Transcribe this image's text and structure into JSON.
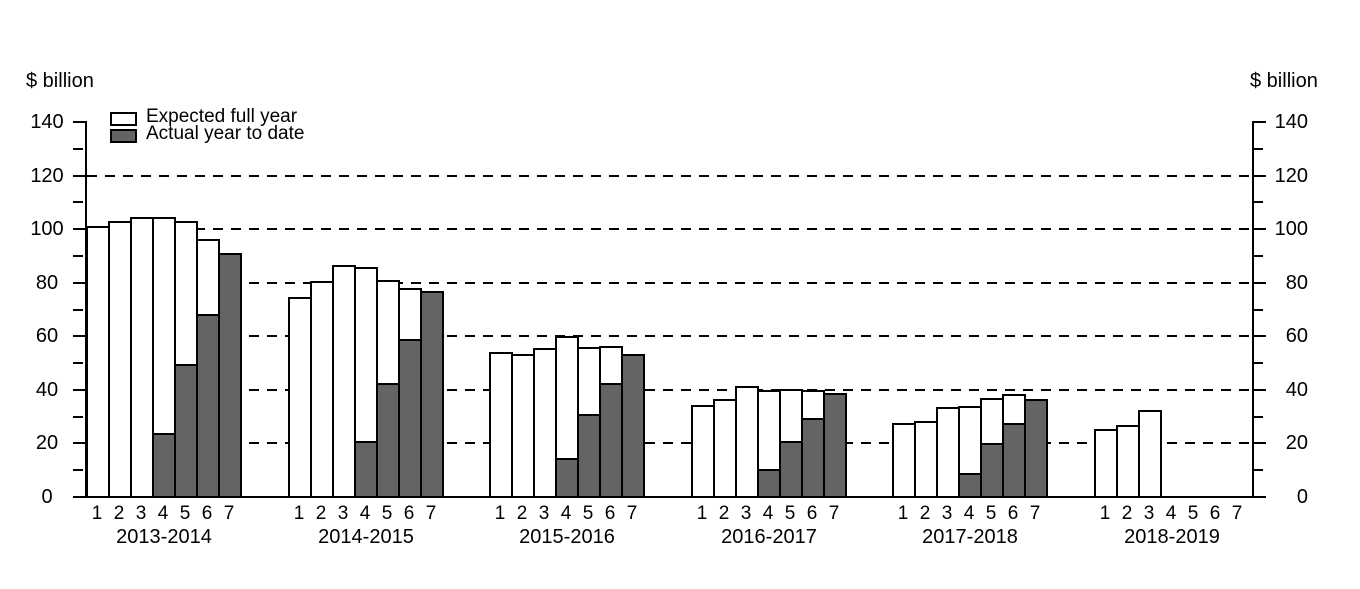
{
  "chart_data": {
    "type": "bar",
    "unit_label": "$ billion",
    "ylim": [
      0,
      140
    ],
    "yticks_major": [
      0,
      20,
      40,
      60,
      80,
      100,
      120,
      140
    ],
    "yticks_minor": [
      10,
      30,
      50,
      70,
      90,
      110,
      130
    ],
    "gridlines": [
      20,
      40,
      60,
      80,
      100,
      120
    ],
    "grid_style": "dashed",
    "colors": {
      "expected_fill": "#ffffff",
      "actual_fill": "#646464",
      "outline": "#000000"
    },
    "legend": [
      {
        "key": "expected",
        "label": "Expected full year"
      },
      {
        "key": "actual",
        "label": "Actual year to date"
      }
    ],
    "obs_labels": [
      "1",
      "2",
      "3",
      "4",
      "5",
      "6",
      "7"
    ],
    "groups": [
      {
        "label": "2013-2014",
        "expected": [
          101,
          103,
          104.5,
          104.5,
          103,
          96.5,
          null
        ],
        "actual": [
          null,
          null,
          null,
          24,
          49.5,
          68.5,
          91
        ]
      },
      {
        "label": "2014-2015",
        "expected": [
          74.5,
          80.5,
          86.5,
          86,
          81,
          78,
          null
        ],
        "actual": [
          null,
          null,
          null,
          21,
          42.5,
          59,
          77
        ]
      },
      {
        "label": "2015-2016",
        "expected": [
          54,
          53.5,
          55.5,
          60,
          56,
          56.5,
          null
        ],
        "actual": [
          null,
          null,
          null,
          14.5,
          31,
          42.5,
          53.5
        ]
      },
      {
        "label": "2016-2017",
        "expected": [
          34.5,
          36.5,
          41.5,
          40,
          40.5,
          40,
          null
        ],
        "actual": [
          null,
          null,
          null,
          10.5,
          21,
          29.5,
          39
        ]
      },
      {
        "label": "2017-2018",
        "expected": [
          27.5,
          28.5,
          33.5,
          34,
          37,
          38.5,
          null
        ],
        "actual": [
          null,
          null,
          null,
          9,
          20,
          27.5,
          36.5
        ]
      },
      {
        "label": "2018-2019",
        "expected": [
          25.5,
          27,
          32.5,
          null,
          null,
          null,
          null
        ],
        "actual": [
          null,
          null,
          null,
          null,
          null,
          null,
          null
        ]
      }
    ]
  }
}
